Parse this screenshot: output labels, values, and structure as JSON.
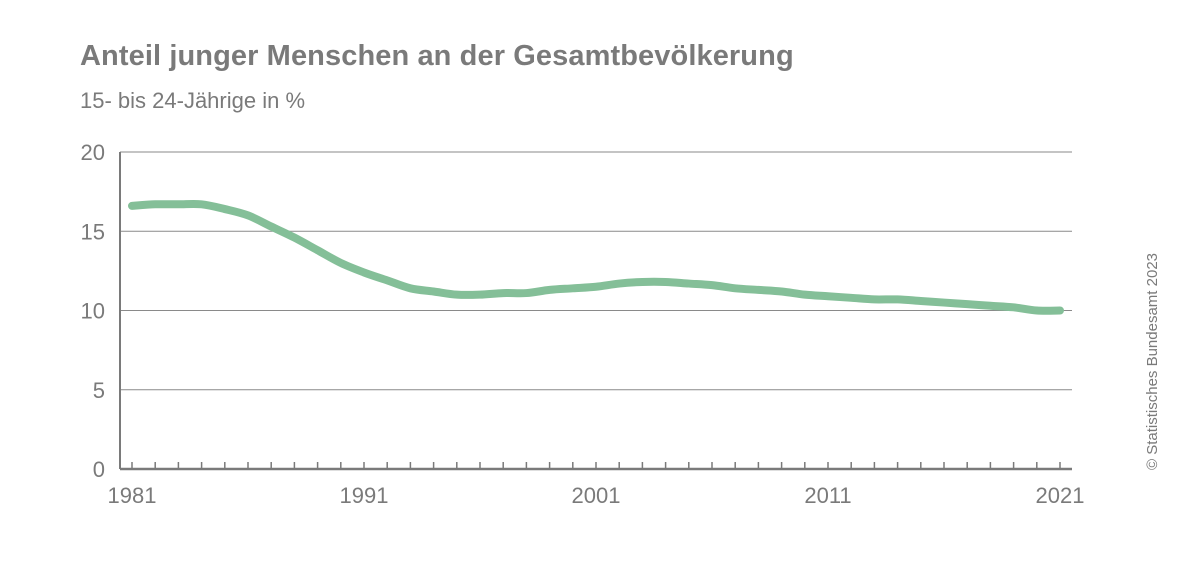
{
  "chart_data": {
    "type": "line",
    "title": "Anteil junger Menschen an der Gesamtbevölkerung",
    "subtitle": "15- bis 24-Jährige in %",
    "xlabel": "",
    "ylabel": "",
    "xlim": [
      1981,
      2021
    ],
    "ylim": [
      0,
      20
    ],
    "yticks": [
      0,
      5,
      10,
      15,
      20
    ],
    "xtick_labels": [
      "1981",
      "1991",
      "2001",
      "2011",
      "2021"
    ],
    "grid": true,
    "series": [
      {
        "color": "#84bf98",
        "x": [
          1981,
          1982,
          1983,
          1984,
          1985,
          1986,
          1987,
          1988,
          1989,
          1990,
          1991,
          1992,
          1993,
          1994,
          1995,
          1996,
          1997,
          1998,
          1999,
          2000,
          2001,
          2002,
          2003,
          2004,
          2005,
          2006,
          2007,
          2008,
          2009,
          2010,
          2011,
          2012,
          2013,
          2014,
          2015,
          2016,
          2017,
          2018,
          2019,
          2020,
          2021
        ],
        "y": [
          16.6,
          16.7,
          16.7,
          16.7,
          16.4,
          16.0,
          15.3,
          14.6,
          13.8,
          13.0,
          12.4,
          11.9,
          11.4,
          11.2,
          11.0,
          11.0,
          11.1,
          11.1,
          11.3,
          11.4,
          11.5,
          11.7,
          11.8,
          11.8,
          11.7,
          11.6,
          11.4,
          11.3,
          11.2,
          11.0,
          10.9,
          10.8,
          10.7,
          10.7,
          10.6,
          10.5,
          10.4,
          10.3,
          10.2,
          10.0,
          10.0
        ]
      }
    ]
  },
  "copyright": "© Statistisches Bundesamt 2023"
}
